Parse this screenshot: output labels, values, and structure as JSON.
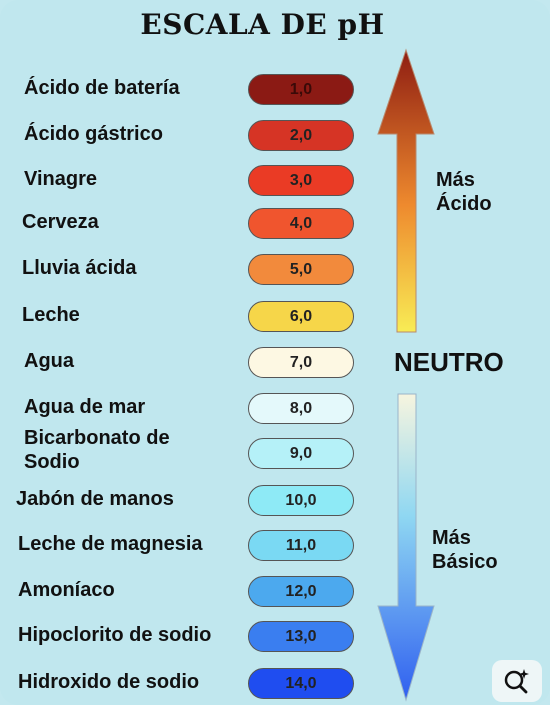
{
  "title": "ESCALA DE pH",
  "items": [
    {
      "label": "Ácido de batería",
      "value": "1,0",
      "color": "#8b1a14"
    },
    {
      "label": "Ácido gástrico",
      "value": "2,0",
      "color": "#d63425"
    },
    {
      "label": "Vinagre",
      "value": "3,0",
      "color": "#ea3b25"
    },
    {
      "label": "Cerveza",
      "value": "4,0",
      "color": "#f0552e"
    },
    {
      "label": "Lluvia ácida",
      "value": "5,0",
      "color": "#f28a3c"
    },
    {
      "label": "Leche",
      "value": "6,0",
      "color": "#f6d649"
    },
    {
      "label": "Agua",
      "value": "7,0",
      "color": "#fdf8e3"
    },
    {
      "label": "Agua de mar",
      "value": "8,0",
      "color": "#e4f9fb"
    },
    {
      "label": "Bicarbonato de\nSodio",
      "value": "9,0",
      "color": "#b5f1f8"
    },
    {
      "label": "Jabón de manos",
      "value": "10,0",
      "color": "#8eeaf6"
    },
    {
      "label": "Leche de magnesia",
      "value": "11,0",
      "color": "#7ad9f3"
    },
    {
      "label": "Amoníaco",
      "value": "12,0",
      "color": "#4ca9ee"
    },
    {
      "label": "Hipoclorito de sodio",
      "value": "13,0",
      "color": "#3a7ef0"
    },
    {
      "label": "Hidroxido de sodio",
      "value": "14,0",
      "color": "#1f4df0"
    }
  ],
  "acid_label": "Más\nÁcido",
  "neutral_label": "NEUTRO",
  "basic_label": "Más\nBásico",
  "zoom_icon": "zoom-search-icon"
}
